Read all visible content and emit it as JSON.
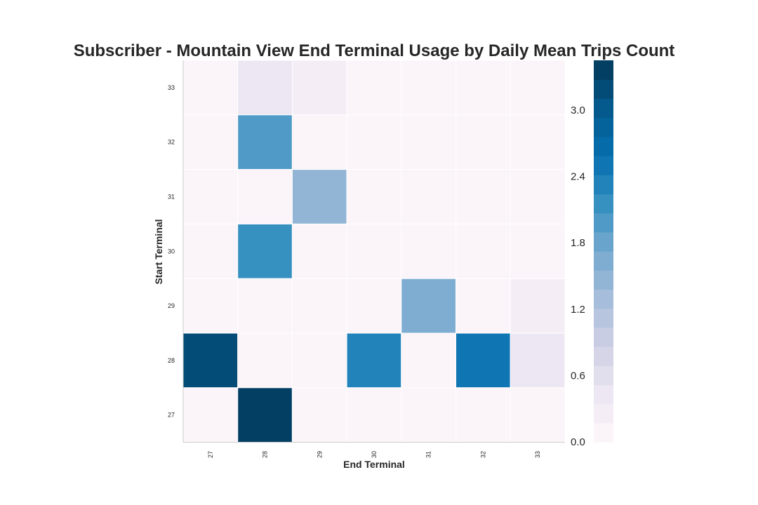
{
  "chart_data": {
    "type": "heatmap",
    "title": "Subscriber - Mountain View End Terminal Usage by Daily Mean Trips Count",
    "xlabel": "End Terminal",
    "ylabel": "Start Terminal",
    "x_categories": [
      "27",
      "28",
      "29",
      "30",
      "31",
      "32",
      "33"
    ],
    "y_categories": [
      "33",
      "32",
      "31",
      "30",
      "29",
      "28",
      "27"
    ],
    "values": [
      [
        0.0,
        0.5,
        0.3,
        0.0,
        0.0,
        0.0,
        0.0
      ],
      [
        0.0,
        1.95,
        0.0,
        0.0,
        0.0,
        0.0,
        0.0
      ],
      [
        0.0,
        0.15,
        1.5,
        0.0,
        0.0,
        0.0,
        0.0
      ],
      [
        0.0,
        2.15,
        0.0,
        0.0,
        0.0,
        0.0,
        0.0
      ],
      [
        0.0,
        0.0,
        0.0,
        0.0,
        1.65,
        0.0,
        0.25
      ],
      [
        3.2,
        0.0,
        0.0,
        2.3,
        0.15,
        2.55,
        0.5
      ],
      [
        0.0,
        3.4,
        0.0,
        0.0,
        0.0,
        0.0,
        0.0
      ]
    ],
    "colorbar": {
      "ticks": [
        "0.0",
        "0.6",
        "1.2",
        "1.8",
        "2.4",
        "3.0"
      ],
      "min": 0.0,
      "max": 3.45,
      "levels": 20,
      "colormap": [
        "#fff7fb",
        "#ece7f2",
        "#d0d1e6",
        "#a6bddb",
        "#74a9cf",
        "#3690c0",
        "#0570b0",
        "#045a8d",
        "#023858"
      ]
    }
  }
}
